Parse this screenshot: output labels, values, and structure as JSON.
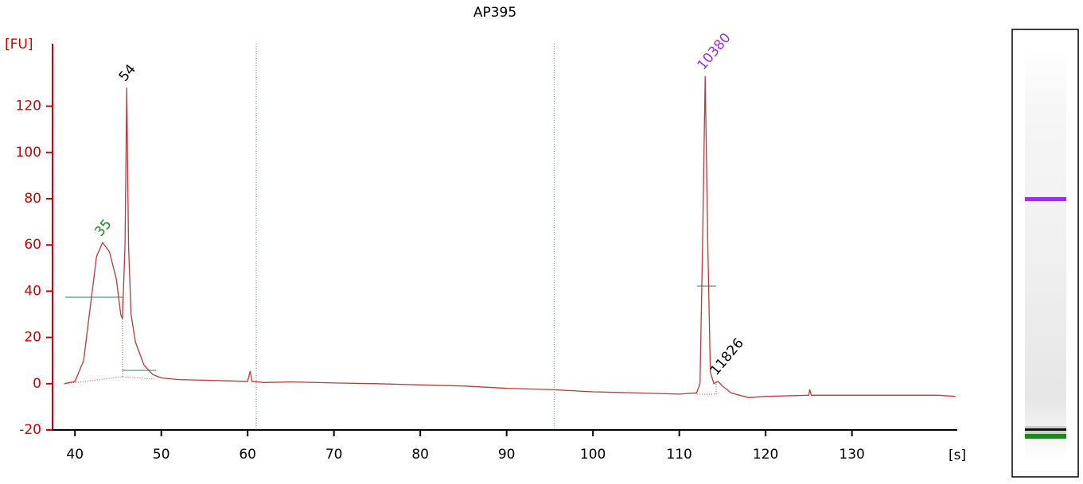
{
  "chart_data": {
    "type": "line",
    "title": "AP395",
    "ylabel": "[FU]",
    "xlabel": "[s]",
    "xlim": [
      37.4,
      142.2
    ],
    "ylim": [
      -20,
      147
    ],
    "xticks": [
      40,
      50,
      60,
      70,
      80,
      90,
      100,
      110,
      120,
      130
    ],
    "yticks": [
      -20,
      0,
      20,
      40,
      60,
      80,
      100,
      120
    ],
    "color": "#b83a3a",
    "axis_color": "#d40000",
    "x": [
      38.8,
      40,
      41,
      42,
      42.5,
      43.2,
      44,
      44.8,
      45.3,
      45.5,
      45.8,
      46.0,
      46.2,
      46.5,
      47,
      48,
      49,
      50,
      52,
      55,
      58,
      60,
      60.3,
      60.5,
      62,
      65,
      70,
      75,
      80,
      85,
      90,
      95,
      100,
      105,
      110,
      112,
      112.4,
      112.7,
      113,
      113.3,
      113.6,
      114,
      114.5,
      115,
      116,
      118,
      120,
      125,
      125.1,
      125.3,
      130,
      135,
      140,
      142
    ],
    "values": [
      0,
      1,
      10,
      40,
      55,
      61,
      57,
      45,
      30,
      28,
      60,
      128,
      60,
      30,
      18,
      8,
      4,
      2.5,
      1.8,
      1.5,
      1.2,
      1,
      5.5,
      1,
      0.5,
      0.8,
      0.3,
      0,
      -0.5,
      -1,
      -2,
      -2.5,
      -3.5,
      -4,
      -4.5,
      -4,
      0,
      60,
      133,
      60,
      5,
      0,
      1,
      -1,
      -4,
      -6,
      -5.5,
      -5,
      -2.5,
      -5,
      -5,
      -5,
      -5,
      -5.5
    ],
    "vlines": [
      61,
      95.5
    ],
    "annotations": [
      {
        "text": "35",
        "x": 43.2,
        "y": 61,
        "color": "#1a8a1a"
      },
      {
        "text": "54",
        "x": 46.0,
        "y": 128,
        "color": "#000000"
      },
      {
        "text": "10380",
        "x": 113,
        "y": 133,
        "color": "#9b30e0"
      },
      {
        "text": "11826",
        "x": 114.5,
        "y": 1,
        "color": "#000000"
      }
    ]
  }
}
